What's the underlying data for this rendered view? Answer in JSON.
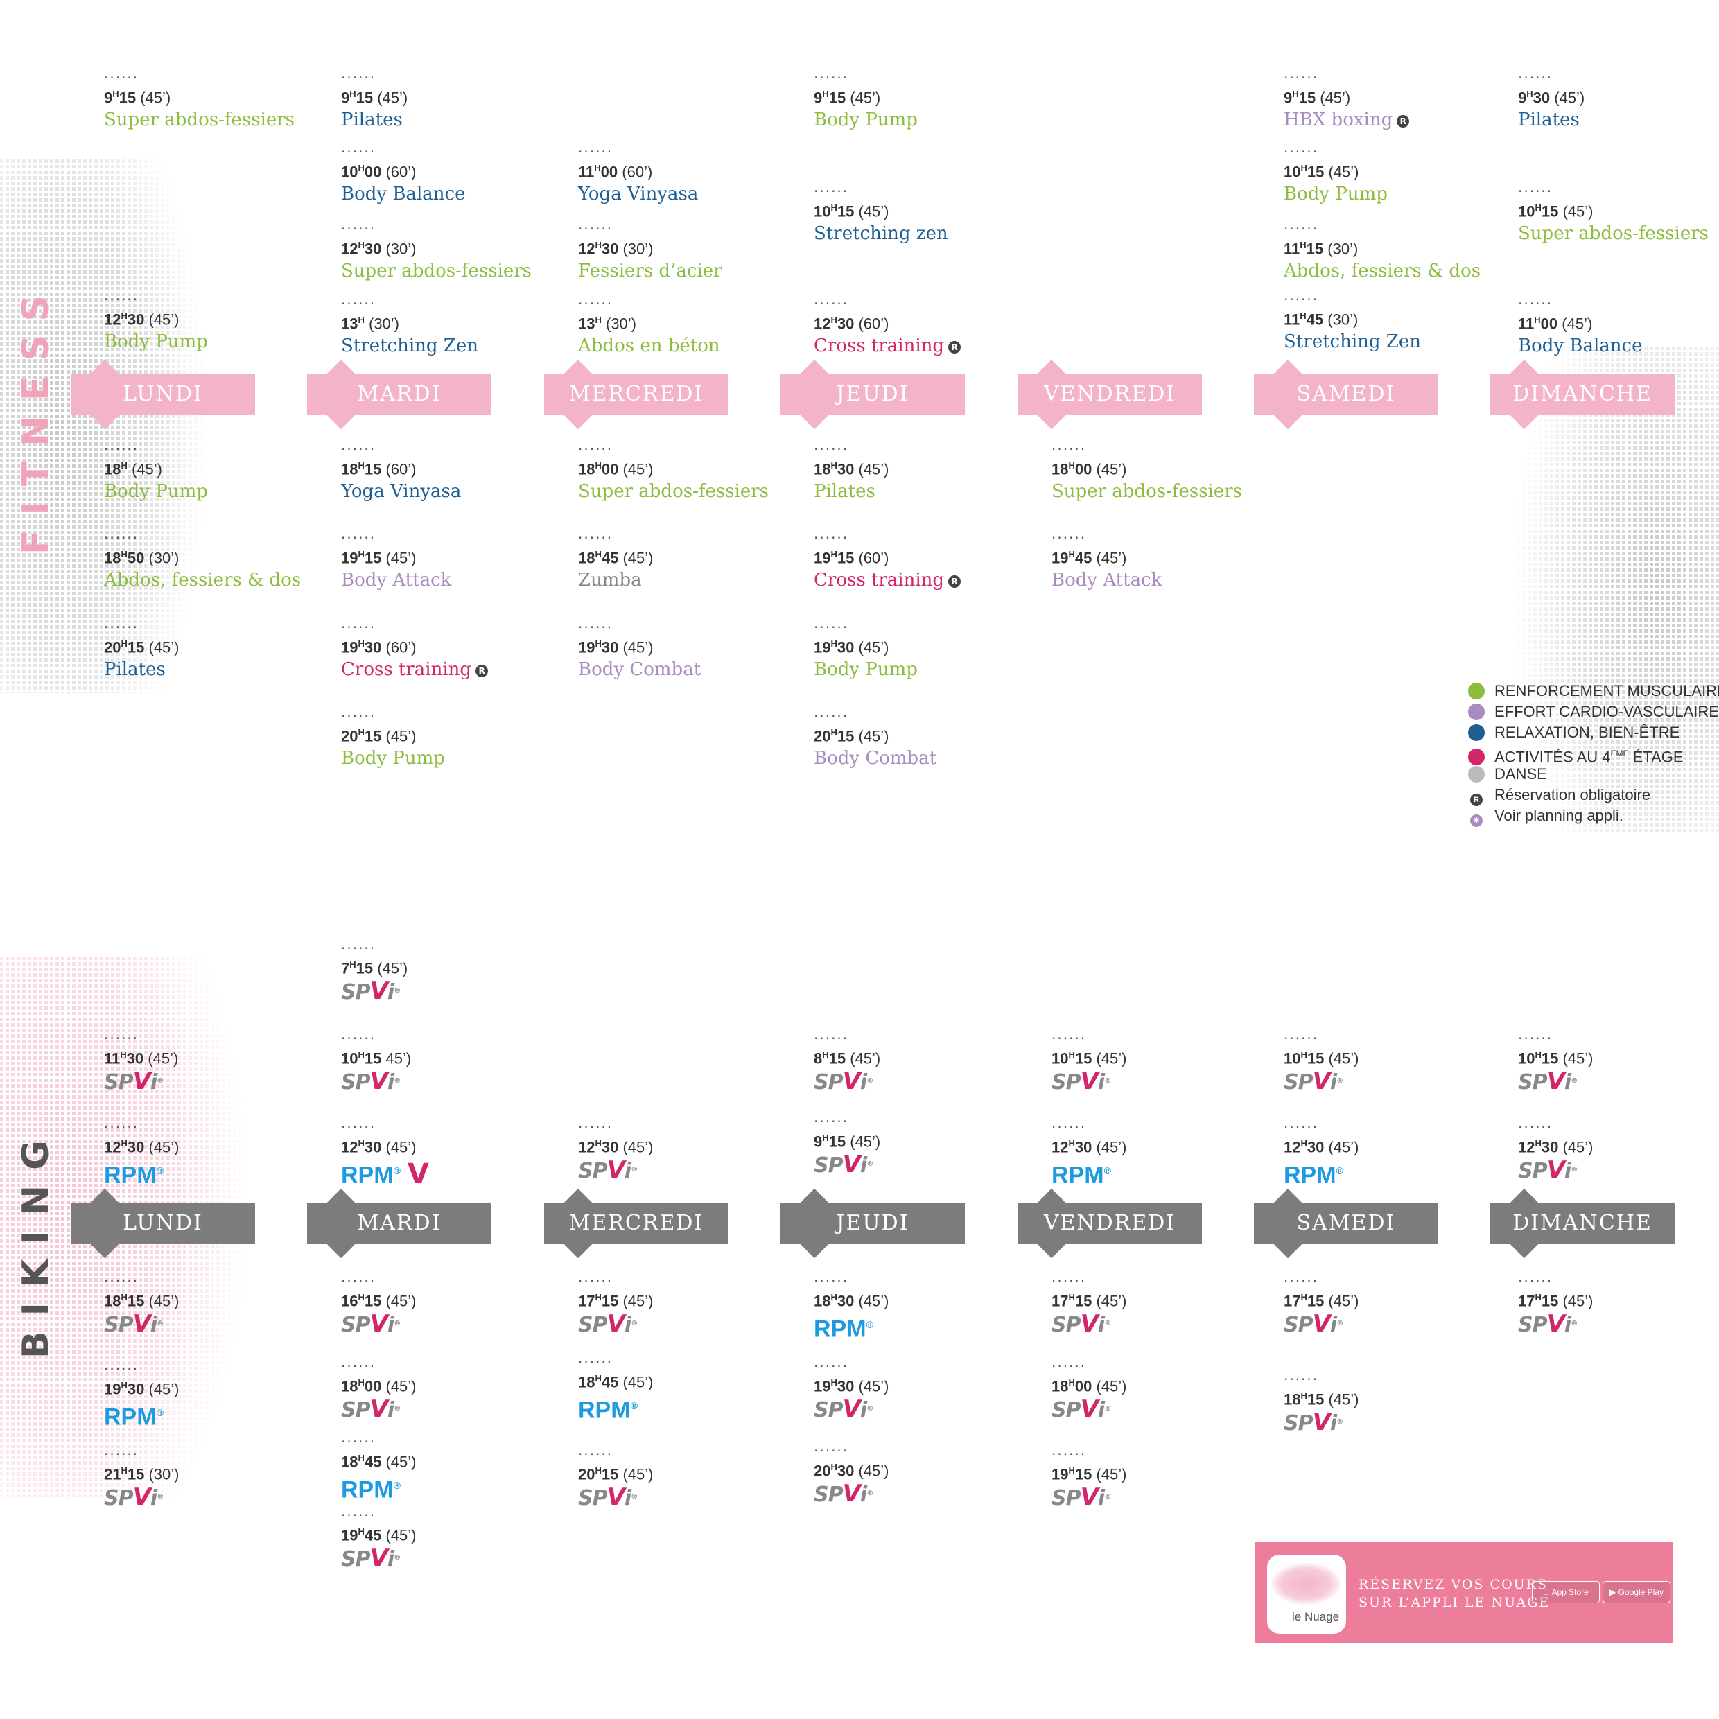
{
  "sections": {
    "fitness": "FITNESS",
    "biking": "BIKING"
  },
  "colors": {
    "fitness_bar": "#f4b4c7",
    "biking_bar": "#7c7c7c",
    "renforcement": "#8cbd3f",
    "cardio": "#a98bc0",
    "relaxation": "#1d5f93",
    "activites": "#d2256a",
    "danse": "#bbbbbb",
    "spivi_accent": "#d2256a",
    "rpm": "#1e9be0",
    "promo_bg": "#ec7d9b"
  },
  "days": [
    "LUNDI",
    "MARDI",
    "MERCREDI",
    "JEUDI",
    "VENDREDI",
    "SAMEDI",
    "DIMANCHE"
  ],
  "fitness": {
    "LUNDI": [
      {
        "h": "9",
        "sup": "H",
        "m": "15",
        "dur": "(45’)",
        "name": "Super abdos-fessiers",
        "color": "green"
      },
      {
        "h": "12",
        "sup": "H",
        "m": "30",
        "dur": "(45’)",
        "name": "Body Pump",
        "color": "green"
      },
      {
        "h": "18",
        "sup": "H",
        "m": "",
        "dur": "(45’)",
        "name": "Body Pump",
        "color": "green"
      },
      {
        "h": "18",
        "sup": "H",
        "m": "50",
        "dur": "(30’)",
        "name": "Abdos, fessiers & dos",
        "color": "green"
      },
      {
        "h": "20",
        "sup": "H",
        "m": "15",
        "dur": "(45’)",
        "name": "Pilates",
        "color": "blue"
      }
    ],
    "MARDI": [
      {
        "h": "9",
        "sup": "H",
        "m": "15",
        "dur": "(45’)",
        "name": "Pilates",
        "color": "blue"
      },
      {
        "h": "10",
        "sup": "H",
        "m": "00",
        "dur": "(60’)",
        "name": "Body Balance",
        "color": "blue"
      },
      {
        "h": "12",
        "sup": "H",
        "m": "30",
        "dur": "(30’)",
        "name": "Super abdos-fessiers",
        "color": "green"
      },
      {
        "h": "13",
        "sup": "H",
        "m": "",
        "dur": "(30’)",
        "name": "Stretching Zen",
        "color": "blue"
      },
      {
        "h": "18",
        "sup": "H",
        "m": "15",
        "dur": "(60’)",
        "name": "Yoga Vinyasa",
        "color": "blue"
      },
      {
        "h": "19",
        "sup": "H",
        "m": "15",
        "dur": "(45’)",
        "name": "Body Attack",
        "color": "purple"
      },
      {
        "h": "19",
        "sup": "H",
        "m": "30",
        "dur": "(60’)",
        "name": "Cross training",
        "color": "pink",
        "resv": true
      },
      {
        "h": "20",
        "sup": "H",
        "m": "15",
        "dur": "(45’)",
        "name": "Body Pump",
        "color": "green"
      }
    ],
    "MERCREDI": [
      {
        "h": "11",
        "sup": "H",
        "m": "00",
        "dur": "(60’)",
        "name": "Yoga Vinyasa",
        "color": "blue"
      },
      {
        "h": "12",
        "sup": "H",
        "m": "30",
        "dur": "(30’)",
        "name": "Fessiers d’acier",
        "color": "green"
      },
      {
        "h": "13",
        "sup": "H",
        "m": "",
        "dur": "(30’)",
        "name": "Abdos en béton",
        "color": "green"
      },
      {
        "h": "18",
        "sup": "H",
        "m": "00",
        "dur": "(45’)",
        "name": "Super abdos-fessiers",
        "color": "green"
      },
      {
        "h": "18",
        "sup": "H",
        "m": "45",
        "dur": "(45’)",
        "name": "Zumba",
        "color": "gray"
      },
      {
        "h": "19",
        "sup": "H",
        "m": "30",
        "dur": "(45’)",
        "name": "Body Combat",
        "color": "purple"
      }
    ],
    "JEUDI": [
      {
        "h": "9",
        "sup": "H",
        "m": "15",
        "dur": "(45’)",
        "name": "Body Pump",
        "color": "green"
      },
      {
        "h": "10",
        "sup": "H",
        "m": "15",
        "dur": "(45’)",
        "name": "Stretching zen",
        "color": "blue"
      },
      {
        "h": "12",
        "sup": "H",
        "m": "30",
        "dur": "(60’)",
        "name": "Cross training",
        "color": "pink",
        "resv": true
      },
      {
        "h": "18",
        "sup": "H",
        "m": "30",
        "dur": "(45’)",
        "name": "Pilates",
        "color": "green"
      },
      {
        "h": "19",
        "sup": "H",
        "m": "15",
        "dur": "(60’)",
        "name": "Cross training",
        "color": "pink",
        "resv": true
      },
      {
        "h": "19",
        "sup": "H",
        "m": "30",
        "dur": "(45’)",
        "name": "Body Pump",
        "color": "green"
      },
      {
        "h": "20",
        "sup": "H",
        "m": "15",
        "dur": "(45’)",
        "name": "Body Combat",
        "color": "purple"
      }
    ],
    "VENDREDI": [
      {
        "h": "18",
        "sup": "H",
        "m": "00",
        "dur": "(45’)",
        "name": "Super abdos-fessiers",
        "color": "green"
      },
      {
        "h": "19",
        "sup": "H",
        "m": "45",
        "dur": "(45’)",
        "name": "Body Attack",
        "color": "purple"
      }
    ],
    "SAMEDI": [
      {
        "h": "9",
        "sup": "H",
        "m": "15",
        "dur": "(45’)",
        "name": "HBX boxing",
        "color": "purple",
        "resv": true
      },
      {
        "h": "10",
        "sup": "H",
        "m": "15",
        "dur": "(45’)",
        "name": "Body Pump",
        "color": "green"
      },
      {
        "h": "11",
        "sup": "H",
        "m": "15",
        "dur": "(30’)",
        "name": "Abdos, fessiers & dos",
        "color": "green"
      },
      {
        "h": "11",
        "sup": "H",
        "m": "45",
        "dur": "(30’)",
        "name": "Stretching Zen",
        "color": "blue"
      }
    ],
    "DIMANCHE": [
      {
        "h": "9",
        "sup": "H",
        "m": "30",
        "dur": "(45’)",
        "name": "Pilates",
        "color": "blue"
      },
      {
        "h": "10",
        "sup": "H",
        "m": "15",
        "dur": "(45’)",
        "name": "Super abdos-fessiers",
        "color": "green"
      },
      {
        "h": "11",
        "sup": "H",
        "m": "00",
        "dur": "(45’)",
        "name": "Body Balance",
        "color": "blue"
      }
    ]
  },
  "biking": {
    "LUNDI": [
      {
        "h": "11",
        "m": "30",
        "dur": "(45’)",
        "brand": "SPiVi"
      },
      {
        "h": "12",
        "m": "30",
        "dur": "(45’)",
        "brand": "RPM"
      },
      {
        "h": "18",
        "m": "15",
        "dur": "(45’)",
        "brand": "SPiVi"
      },
      {
        "h": "19",
        "m": "30",
        "dur": "(45’)",
        "brand": "RPM"
      },
      {
        "h": "21",
        "m": "15",
        "dur": "(30’)",
        "brand": "SPiVi"
      }
    ],
    "MARDI": [
      {
        "h": "7",
        "m": "15",
        "dur": "(45’)",
        "brand": "SPiVi"
      },
      {
        "h": "10",
        "m": "15",
        "dur": "45’)",
        "brand": "SPiVi"
      },
      {
        "h": "12",
        "m": "30",
        "dur": "(45’)",
        "brand": "RPM",
        "vmark": true
      },
      {
        "h": "16",
        "m": "15",
        "dur": "(45’)",
        "brand": "SPiVi"
      },
      {
        "h": "18",
        "m": "00",
        "dur": "(45’)",
        "brand": "SPiVi"
      },
      {
        "h": "18",
        "m": "45",
        "dur": "(45’)",
        "brand": "RPM"
      },
      {
        "h": "19",
        "m": "45",
        "dur": "(45’)",
        "brand": "SPiVi"
      }
    ],
    "MERCREDI": [
      {
        "h": "12",
        "m": "30",
        "dur": "(45’)",
        "brand": "SPiVi"
      },
      {
        "h": "17",
        "m": "15",
        "dur": "(45’)",
        "brand": "SPiVi"
      },
      {
        "h": "18",
        "m": "45",
        "dur": "(45’)",
        "brand": "RPM"
      },
      {
        "h": "20",
        "m": "15",
        "dur": "(45’)",
        "brand": "SPiVi"
      }
    ],
    "JEUDI": [
      {
        "h": "8",
        "m": "15",
        "dur": "(45’)",
        "brand": "SPiVi"
      },
      {
        "h": "9",
        "m": "15",
        "dur": "(45’)",
        "brand": "SPiVi"
      },
      {
        "h": "18",
        "m": "30",
        "dur": "(45’)",
        "brand": "RPM"
      },
      {
        "h": "19",
        "m": "30",
        "dur": "(45’)",
        "brand": "SPiVi"
      },
      {
        "h": "20",
        "m": "30",
        "dur": "(45’)",
        "brand": "SPiVi"
      }
    ],
    "VENDREDI": [
      {
        "h": "10",
        "m": "15",
        "dur": "(45’)",
        "brand": "SPiVi"
      },
      {
        "h": "12",
        "m": "30",
        "dur": "(45’)",
        "brand": "RPM"
      },
      {
        "h": "17",
        "m": "15",
        "dur": "(45’)",
        "brand": "SPiVi"
      },
      {
        "h": "18",
        "m": "00",
        "dur": "(45’)",
        "brand": "SPiVi"
      },
      {
        "h": "19",
        "m": "15",
        "dur": "(45’)",
        "brand": "SPiVi"
      }
    ],
    "SAMEDI": [
      {
        "h": "10",
        "m": "15",
        "dur": "(45’)",
        "brand": "SPiVi"
      },
      {
        "h": "12",
        "m": "30",
        "dur": "(45’)",
        "brand": "RPM"
      },
      {
        "h": "17",
        "m": "15",
        "dur": "(45’)",
        "brand": "SPiVi"
      },
      {
        "h": "18",
        "m": "15",
        "dur": "(45’)",
        "brand": "SPiVi"
      }
    ],
    "DIMANCHE": [
      {
        "h": "10",
        "m": "15",
        "dur": "(45’)",
        "brand": "SPiVi"
      },
      {
        "h": "12",
        "m": "30",
        "dur": "(45’)",
        "brand": "SPiVi"
      },
      {
        "h": "17",
        "m": "15",
        "dur": "(45’)",
        "brand": "SPiVi"
      }
    ]
  },
  "legend": {
    "renforcement": "RENFORCEMENT MUSCULAIRE",
    "cardio": "EFFORT CARDIO-VASCULAIRE",
    "relaxation": "RELAXATION, BIEN-ÊTRE",
    "activites": "ACTIVITÉS AU 4",
    "activites_sup": "EME",
    "activites_end": " ÉTAGE",
    "danse": "DANSE",
    "reservation": "Réservation obligatoire",
    "planning": "Voir planning appli."
  },
  "promo": {
    "line1": "RÉSERVEZ VOS COURS",
    "line2": "SUR L’APPLI LE NUAGE",
    "app_name": "le Nuage",
    "appstore": "App Store",
    "googleplay": "Google Play"
  }
}
